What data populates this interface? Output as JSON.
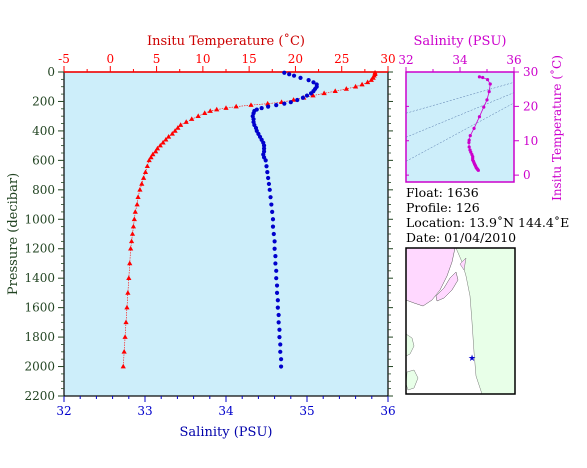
{
  "colors": {
    "temperature": "#ff0000",
    "salinity": "#0000cc",
    "inset_salinity": "#cc00cc",
    "plot_background": "#cdeefa",
    "map_ocean": "#ffffff",
    "map_land_east": "#e8ffe8",
    "map_land_north": "#ffd8ff"
  },
  "chart_data": [
    {
      "type": "scatter",
      "id": "profile",
      "top_axis": {
        "label": "Insitu Temperature (˚C)",
        "range": [
          -5,
          30
        ],
        "ticks": [
          -5,
          0,
          5,
          10,
          15,
          20,
          25,
          30
        ]
      },
      "bottom_axis": {
        "label": "Salinity (PSU)",
        "range": [
          32,
          36
        ],
        "ticks": [
          32,
          33,
          34,
          35,
          36
        ]
      },
      "y_axis": {
        "label": "Pressure (decibar)",
        "range": [
          0,
          2200
        ],
        "inverted": true,
        "ticks": [
          0,
          200,
          400,
          600,
          800,
          1000,
          1200,
          1400,
          1600,
          1800,
          2000,
          2200
        ]
      },
      "grid": false,
      "series": [
        {
          "marker": "triangle",
          "x_axis": "top",
          "points": [
            [
              28.6,
              5
            ],
            [
              28.6,
              15
            ],
            [
              28.5,
              25
            ],
            [
              28.4,
              40
            ],
            [
              28.2,
              55
            ],
            [
              27.8,
              70
            ],
            [
              27.2,
              85
            ],
            [
              26.5,
              100
            ],
            [
              25.5,
              115
            ],
            [
              24.3,
              130
            ],
            [
              23.1,
              145
            ],
            [
              21.9,
              160
            ],
            [
              20.9,
              175
            ],
            [
              19.8,
              190
            ],
            [
              18.5,
              205
            ],
            [
              17.0,
              215
            ],
            [
              15.2,
              225
            ],
            [
              13.6,
              235
            ],
            [
              12.5,
              245
            ],
            [
              11.5,
              255
            ],
            [
              10.8,
              265
            ],
            [
              10.2,
              280
            ],
            [
              9.5,
              300
            ],
            [
              8.8,
              320
            ],
            [
              8.2,
              340
            ],
            [
              7.6,
              360
            ],
            [
              7.3,
              380
            ],
            [
              7.0,
              400
            ],
            [
              6.7,
              420
            ],
            [
              6.3,
              440
            ],
            [
              6.0,
              460
            ],
            [
              5.7,
              480
            ],
            [
              5.4,
              500
            ],
            [
              5.1,
              520
            ],
            [
              4.9,
              540
            ],
            [
              4.6,
              560
            ],
            [
              4.4,
              580
            ],
            [
              4.2,
              600
            ],
            [
              4.0,
              640
            ],
            [
              3.8,
              680
            ],
            [
              3.6,
              720
            ],
            [
              3.4,
              760
            ],
            [
              3.2,
              800
            ],
            [
              3.0,
              850
            ],
            [
              2.9,
              900
            ],
            [
              2.7,
              950
            ],
            [
              2.6,
              1000
            ],
            [
              2.5,
              1050
            ],
            [
              2.4,
              1100
            ],
            [
              2.3,
              1150
            ],
            [
              2.2,
              1200
            ],
            [
              2.1,
              1300
            ],
            [
              2.0,
              1400
            ],
            [
              1.9,
              1500
            ],
            [
              1.8,
              1600
            ],
            [
              1.7,
              1700
            ],
            [
              1.6,
              1800
            ],
            [
              1.5,
              1900
            ],
            [
              1.4,
              2000
            ]
          ]
        },
        {
          "marker": "dot",
          "x_axis": "bottom",
          "points": [
            [
              34.72,
              5
            ],
            [
              34.78,
              15
            ],
            [
              34.84,
              25
            ],
            [
              34.92,
              40
            ],
            [
              35.02,
              55
            ],
            [
              35.08,
              70
            ],
            [
              35.12,
              85
            ],
            [
              35.12,
              100
            ],
            [
              35.1,
              115
            ],
            [
              35.08,
              130
            ],
            [
              35.05,
              145
            ],
            [
              35.0,
              160
            ],
            [
              34.95,
              175
            ],
            [
              34.88,
              190
            ],
            [
              34.8,
              205
            ],
            [
              34.72,
              215
            ],
            [
              34.62,
              225
            ],
            [
              34.52,
              235
            ],
            [
              34.44,
              245
            ],
            [
              34.38,
              255
            ],
            [
              34.35,
              265
            ],
            [
              34.34,
              280
            ],
            [
              34.33,
              300
            ],
            [
              34.34,
              320
            ],
            [
              34.34,
              340
            ],
            [
              34.35,
              360
            ],
            [
              34.37,
              380
            ],
            [
              34.38,
              400
            ],
            [
              34.4,
              420
            ],
            [
              34.42,
              440
            ],
            [
              34.44,
              460
            ],
            [
              34.46,
              480
            ],
            [
              34.47,
              500
            ],
            [
              34.47,
              520
            ],
            [
              34.47,
              540
            ],
            [
              34.46,
              560
            ],
            [
              34.47,
              580
            ],
            [
              34.49,
              600
            ],
            [
              34.5,
              640
            ],
            [
              34.51,
              680
            ],
            [
              34.52,
              720
            ],
            [
              34.53,
              760
            ],
            [
              34.54,
              800
            ],
            [
              34.55,
              850
            ],
            [
              34.56,
              900
            ],
            [
              34.57,
              950
            ],
            [
              34.58,
              1000
            ],
            [
              34.58,
              1050
            ],
            [
              34.59,
              1100
            ],
            [
              34.6,
              1150
            ],
            [
              34.6,
              1200
            ],
            [
              34.61,
              1250
            ],
            [
              34.61,
              1300
            ],
            [
              34.62,
              1350
            ],
            [
              34.62,
              1400
            ],
            [
              34.63,
              1450
            ],
            [
              34.63,
              1500
            ],
            [
              34.64,
              1550
            ],
            [
              34.64,
              1600
            ],
            [
              34.65,
              1650
            ],
            [
              34.65,
              1700
            ],
            [
              34.66,
              1750
            ],
            [
              34.66,
              1800
            ],
            [
              34.67,
              1850
            ],
            [
              34.67,
              1900
            ],
            [
              34.68,
              1950
            ],
            [
              34.68,
              2000
            ]
          ]
        }
      ]
    },
    {
      "type": "scatter",
      "id": "ts_inset",
      "top_axis": {
        "label": "Salinity (PSU)",
        "range": [
          32,
          36
        ],
        "ticks": [
          32,
          34,
          36
        ]
      },
      "y_axis": {
        "label": "Insitu Temperature (˚C)",
        "range": [
          -2,
          30
        ],
        "ticks": [
          0,
          10,
          20,
          30
        ],
        "side": "right"
      },
      "grid": false,
      "density_contours": [
        {
          "points": [
            [
              32.0,
              18.0
            ],
            [
              36.0,
              27.0
            ]
          ]
        },
        {
          "points": [
            [
              32.0,
              11.0
            ],
            [
              36.0,
              24.0
            ]
          ]
        },
        {
          "points": [
            [
              32.0,
              4.0
            ],
            [
              36.0,
              21.0
            ]
          ]
        }
      ],
      "series": [
        {
          "marker": "dot",
          "points": [
            [
              34.72,
              28.6
            ],
            [
              34.84,
              28.4
            ],
            [
              35.02,
              27.8
            ],
            [
              35.12,
              26.5
            ],
            [
              35.08,
              24.3
            ],
            [
              35.0,
              21.9
            ],
            [
              34.88,
              19.8
            ],
            [
              34.72,
              17.0
            ],
            [
              34.52,
              13.6
            ],
            [
              34.38,
              11.5
            ],
            [
              34.34,
              10.2
            ],
            [
              34.33,
              9.5
            ],
            [
              34.34,
              8.2
            ],
            [
              34.37,
              7.3
            ],
            [
              34.4,
              6.7
            ],
            [
              34.44,
              6.0
            ],
            [
              34.47,
              5.4
            ],
            [
              34.47,
              4.9
            ],
            [
              34.47,
              4.4
            ],
            [
              34.5,
              4.0
            ],
            [
              34.52,
              3.6
            ],
            [
              34.54,
              3.2
            ],
            [
              34.56,
              2.9
            ],
            [
              34.58,
              2.6
            ],
            [
              34.6,
              2.2
            ],
            [
              34.62,
              2.0
            ],
            [
              34.64,
              1.8
            ],
            [
              34.66,
              1.6
            ],
            [
              34.68,
              1.4
            ]
          ]
        }
      ]
    }
  ],
  "info": {
    "float": "Float:  1636",
    "profile": "Profile:  126",
    "location": "Location:  13.9˚N  144.4˚E",
    "date": "Date:  01/04/2010"
  },
  "map": {
    "marker_symbol": "★",
    "marker_lon": 144.4,
    "marker_lat": 13.9
  }
}
